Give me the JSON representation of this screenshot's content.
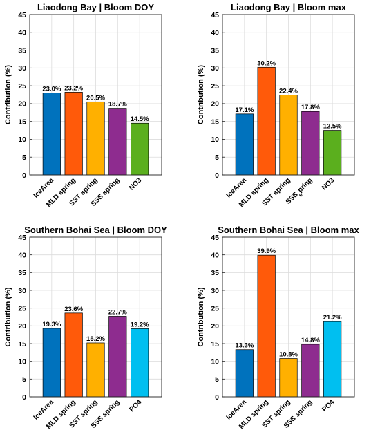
{
  "chart_data": [
    {
      "type": "bar",
      "title": "Liaodong Bay | Bloom DOY",
      "ylabel": "Contribution (%)",
      "ylim": [
        0,
        45
      ],
      "yticks": [
        0,
        5,
        10,
        15,
        20,
        25,
        30,
        35,
        40,
        45
      ],
      "grid": true,
      "categories": [
        "IceArea",
        "MLD spring",
        "SST spring",
        "SSS spring",
        "NO3"
      ],
      "values": [
        23.0,
        23.2,
        20.5,
        18.7,
        14.5
      ],
      "labels": [
        "23.0%",
        "23.2%",
        "20.5%",
        "18.7%",
        "14.5%"
      ],
      "colors": [
        "#0072BD",
        "#FF5A0A",
        "#FFB000",
        "#8E2C8F",
        "#5BAF1E"
      ]
    },
    {
      "type": "bar",
      "title": "Liaodong Bay | Bloom max",
      "ylabel": "Contribution (%)",
      "ylim": [
        0,
        45
      ],
      "yticks": [
        0,
        5,
        10,
        15,
        20,
        25,
        30,
        35,
        40,
        45
      ],
      "grid": true,
      "categories": [
        "IceArea",
        "MLD spring",
        "SST spring",
        "SSS_spring",
        "NO3"
      ],
      "values": [
        17.1,
        30.2,
        22.4,
        17.8,
        12.5
      ],
      "labels": [
        "17.1%",
        "30.2%",
        "22.4%",
        "17.8%",
        "12.5%"
      ],
      "colors": [
        "#0072BD",
        "#FF5A0A",
        "#FFB000",
        "#8E2C8F",
        "#5BAF1E"
      ]
    },
    {
      "type": "bar",
      "title": "Southern Bohai Sea | Bloom DOY",
      "ylabel": "Contribution (%)",
      "ylim": [
        0,
        45
      ],
      "yticks": [
        0,
        5,
        10,
        15,
        20,
        25,
        30,
        35,
        40,
        45
      ],
      "grid": true,
      "categories": [
        "IceArea",
        "MLD spring",
        "SST spring",
        "SSS spring",
        "PO4"
      ],
      "values": [
        19.3,
        23.6,
        15.2,
        22.7,
        19.2
      ],
      "labels": [
        "19.3%",
        "23.6%",
        "15.2%",
        "22.7%",
        "19.2%"
      ],
      "colors": [
        "#0072BD",
        "#FF5A0A",
        "#FFB000",
        "#8E2C8F",
        "#00BFF0"
      ]
    },
    {
      "type": "bar",
      "title": "Southern Bohai Sea | Bloom max",
      "ylabel": "Contribution (%)",
      "ylim": [
        0,
        45
      ],
      "yticks": [
        0,
        5,
        10,
        15,
        20,
        25,
        30,
        35,
        40,
        45
      ],
      "grid": true,
      "categories": [
        "IceArea",
        "MLD spring",
        "SST spring",
        "SSS spring",
        "PO4"
      ],
      "values": [
        13.3,
        39.9,
        10.8,
        14.8,
        21.2
      ],
      "labels": [
        "13.3%",
        "39.9%",
        "10.8%",
        "14.8%",
        "21.2%"
      ],
      "colors": [
        "#0072BD",
        "#FF5A0A",
        "#FFB000",
        "#8E2C8F",
        "#00BFF0"
      ]
    }
  ]
}
